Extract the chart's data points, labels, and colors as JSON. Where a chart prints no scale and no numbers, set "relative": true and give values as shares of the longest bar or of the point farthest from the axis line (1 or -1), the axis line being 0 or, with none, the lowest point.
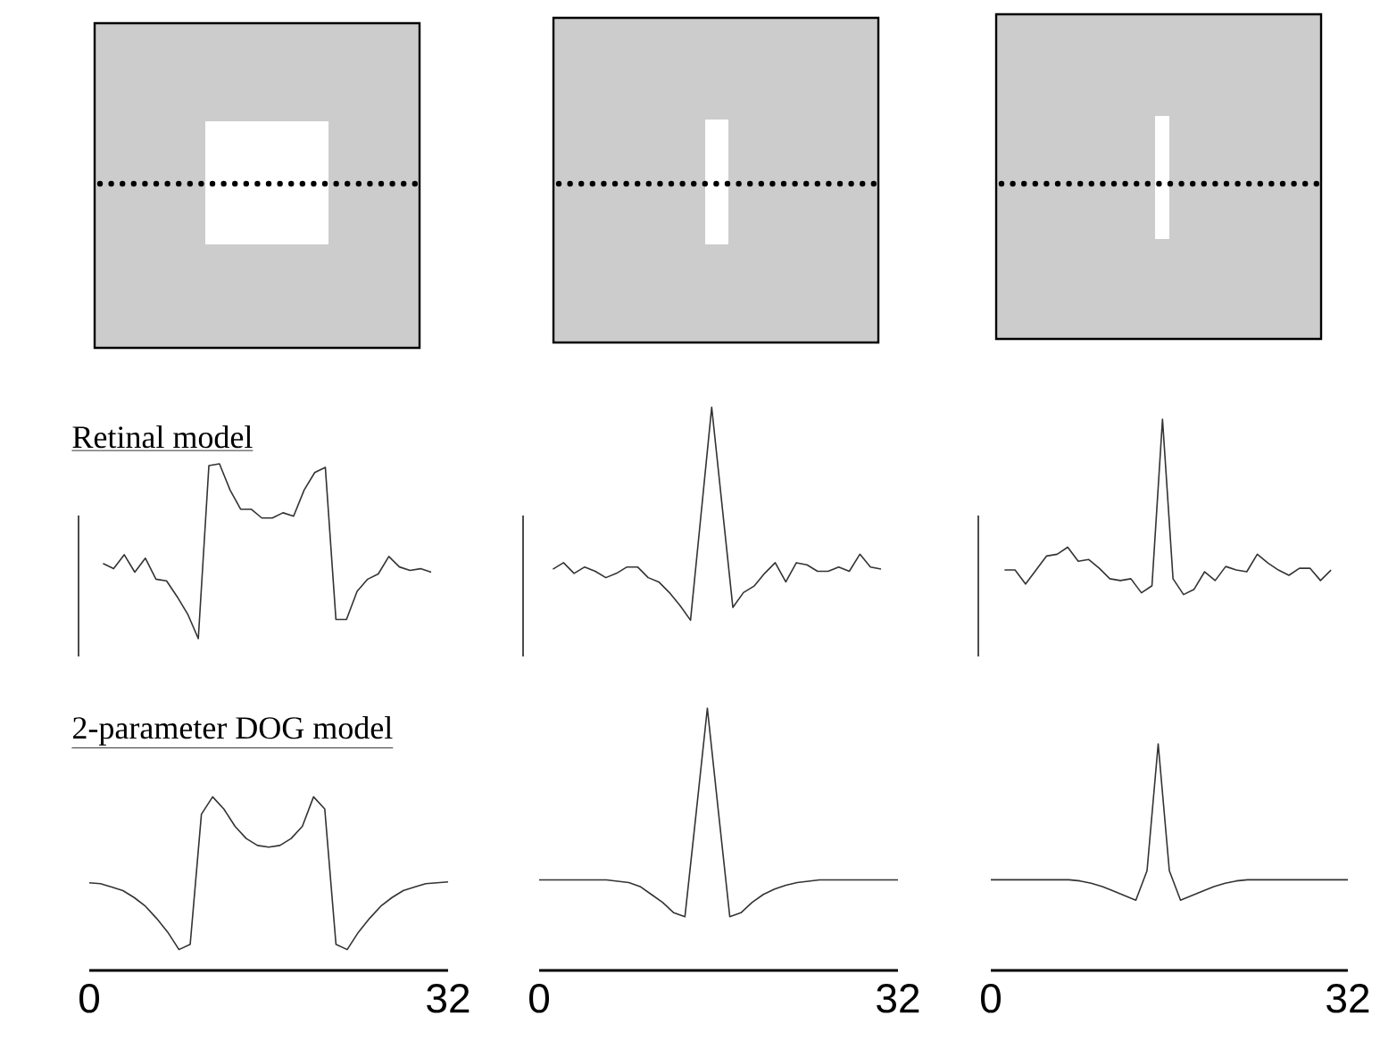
{
  "chart_data": [
    {
      "type": "line",
      "title": "Retinal model",
      "relative": true,
      "tick_labels": false,
      "color": "#333333",
      "categories": [
        null,
        null,
        null,
        null,
        null,
        null,
        null,
        null,
        null,
        null,
        null,
        null,
        null,
        null,
        null,
        null,
        null,
        null,
        null,
        null,
        null,
        null,
        null,
        null,
        null,
        null,
        null,
        null,
        null,
        null,
        null,
        null
      ],
      "values": [
        0.43,
        0.4,
        0.48,
        0.38,
        0.46,
        0.34,
        0.33,
        0.24,
        0.14,
        0,
        0.99,
        1,
        0.85,
        0.74,
        0.74,
        0.69,
        0.69,
        0.72,
        0.7,
        0.85,
        0.95,
        0.98,
        0.11,
        0.11,
        0.27,
        0.34,
        0.37,
        0.47,
        0.41,
        0.39,
        0.4,
        0.38
      ]
    },
    {
      "type": "line",
      "relative": true,
      "tick_labels": false,
      "color": "#333333",
      "categories": [
        null,
        null,
        null,
        null,
        null,
        null,
        null,
        null,
        null,
        null,
        null,
        null,
        null,
        null,
        null,
        null,
        null,
        null,
        null,
        null,
        null,
        null,
        null,
        null,
        null,
        null,
        null,
        null,
        null,
        null,
        null,
        null
      ],
      "values": [
        0.24,
        0.27,
        0.22,
        0.25,
        0.23,
        0.2,
        0.22,
        0.25,
        0.25,
        0.2,
        0.18,
        0.13,
        0.07,
        0,
        0.5,
        1,
        0.53,
        0.06,
        0.13,
        0.16,
        0.22,
        0.27,
        0.18,
        0.27,
        0.26,
        0.23,
        0.23,
        0.25,
        0.23,
        0.31,
        0.25,
        0.24
      ]
    },
    {
      "type": "line",
      "relative": true,
      "tick_labels": false,
      "color": "#333333",
      "categories": [
        null,
        null,
        null,
        null,
        null,
        null,
        null,
        null,
        null,
        null,
        null,
        null,
        null,
        null,
        null,
        null,
        null,
        null,
        null,
        null,
        null,
        null,
        null,
        null,
        null,
        null,
        null,
        null,
        null,
        null,
        null,
        null
      ],
      "values": [
        0.14,
        0.14,
        0.06,
        0.14,
        0.22,
        0.23,
        0.27,
        0.19,
        0.2,
        0.15,
        0.09,
        0.08,
        0.09,
        0.01,
        0.05,
        1,
        0.09,
        0,
        0.03,
        0.13,
        0.08,
        0.16,
        0.14,
        0.13,
        0.23,
        0.18,
        0.14,
        0.11,
        0.15,
        0.15,
        0.08,
        0.14
      ]
    },
    {
      "type": "line",
      "title": "2-parameter DOG model",
      "relative": true,
      "tick_labels": "x",
      "color": "#333333",
      "xlim": [
        0,
        32
      ],
      "xticks": [
        0,
        32
      ],
      "x": [
        0,
        1,
        2,
        3,
        4,
        5,
        6,
        7,
        8,
        9,
        10,
        11,
        12,
        13,
        14,
        15,
        16,
        17,
        18,
        19,
        20,
        21,
        22,
        23,
        24,
        25,
        26,
        27,
        28,
        29,
        30,
        31,
        32
      ],
      "values": [
        0.505,
        0.5,
        0.48,
        0.46,
        0.42,
        0.37,
        0.3,
        0.22,
        0.12,
        0.15,
        0.9,
        1,
        0.93,
        0.83,
        0.76,
        0.72,
        0.71,
        0.72,
        0.76,
        0.83,
        1,
        0.93,
        0.15,
        0.12,
        0.22,
        0.3,
        0.37,
        0.42,
        0.46,
        0.48,
        0.5,
        0.505,
        0.51
      ]
    },
    {
      "type": "line",
      "relative": true,
      "tick_labels": "x",
      "color": "#333333",
      "xlim": [
        0,
        32
      ],
      "xticks": [
        0,
        32
      ],
      "x": [
        0,
        1,
        2,
        3,
        4,
        5,
        6,
        7,
        8,
        9,
        10,
        11,
        12,
        13,
        14,
        15,
        16,
        17,
        18,
        19,
        20,
        21,
        22,
        23,
        24,
        25,
        26,
        27,
        28,
        29,
        30,
        31,
        32
      ],
      "values": [
        0.345,
        0.345,
        0.345,
        0.345,
        0.345,
        0.345,
        0.345,
        0.34,
        0.335,
        0.32,
        0.29,
        0.26,
        0.22,
        0.205,
        0.6,
        1,
        0.6,
        0.205,
        0.22,
        0.26,
        0.29,
        0.31,
        0.325,
        0.335,
        0.34,
        0.345,
        0.345,
        0.345,
        0.345,
        0.345,
        0.345,
        0.345,
        0.345
      ]
    },
    {
      "type": "line",
      "relative": true,
      "tick_labels": "x",
      "color": "#333333",
      "xlim": [
        0,
        32
      ],
      "xticks": [
        0,
        32
      ],
      "x": [
        0,
        1,
        2,
        3,
        4,
        5,
        6,
        7,
        8,
        9,
        10,
        11,
        12,
        13,
        14,
        15,
        16,
        17,
        18,
        19,
        20,
        21,
        22,
        23,
        24,
        25,
        26,
        27,
        28,
        29,
        30,
        31,
        32
      ],
      "values": [
        0.4,
        0.4,
        0.4,
        0.4,
        0.4,
        0.4,
        0.4,
        0.4,
        0.395,
        0.385,
        0.37,
        0.35,
        0.33,
        0.31,
        0.44,
        1,
        0.44,
        0.31,
        0.33,
        0.35,
        0.37,
        0.385,
        0.395,
        0.4,
        0.4,
        0.4,
        0.4,
        0.4,
        0.4,
        0.4,
        0.4,
        0.4,
        0.4
      ]
    }
  ]
}
